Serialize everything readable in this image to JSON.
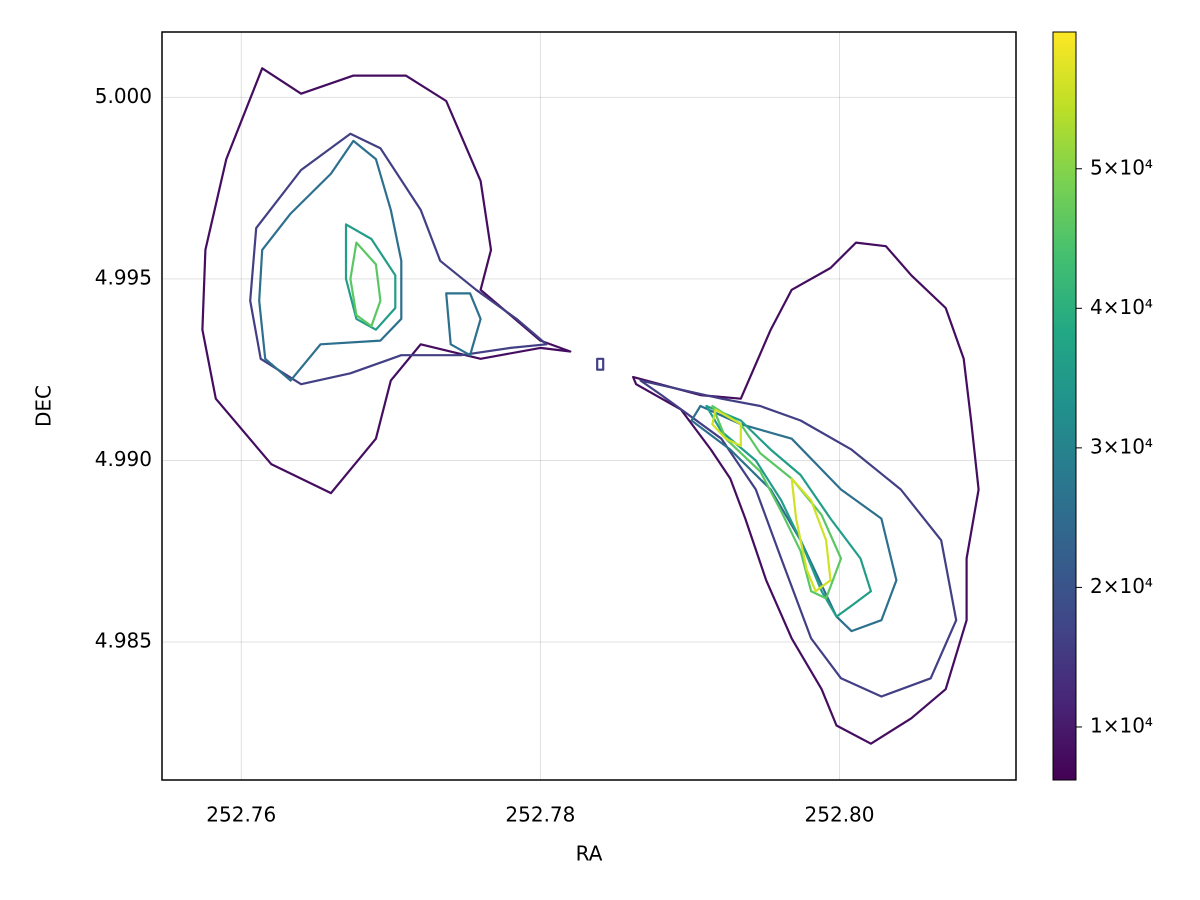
{
  "chart_data": {
    "type": "contour",
    "x_label": "RA",
    "y_label": "DEC",
    "xlim": [
      252.7547,
      252.8118
    ],
    "ylim": [
      4.9812,
      5.0018
    ],
    "xticks": [
      252.76,
      252.78,
      {
        "value": 252.8,
        "label": "252.80"
      }
    ],
    "yticks": [
      {
        "value": 4.985,
        "label": "4.985"
      },
      {
        "value": 4.99,
        "label": "4.990"
      },
      4.995,
      {
        "value": 5.0,
        "label": "5.000"
      }
    ],
    "grid": true,
    "colormap": "viridis",
    "clim": [
      6200,
      59800
    ],
    "colorbar_ticks": [
      {
        "value": 10000,
        "label": "1×10⁴"
      },
      {
        "value": 20000,
        "label": "2×10⁴"
      },
      {
        "value": 30000,
        "label": "3×10⁴"
      },
      {
        "value": 40000,
        "label": "4×10⁴"
      },
      {
        "value": 50000,
        "label": "5×10⁴"
      }
    ],
    "levels": [
      {
        "level": 8000,
        "paths": [
          {
            "x": [
              252.7614,
              252.764,
              252.7675,
              252.771,
              252.7737,
              252.776,
              252.7767,
              252.776,
              252.78,
              252.782,
              252.78,
              252.776,
              252.772,
              252.77,
              252.769,
              252.766,
              252.762,
              252.7583,
              252.7574,
              252.7576,
              252.759
            ],
            "y": [
              5.0008,
              5.0001,
              5.0006,
              5.0006,
              4.9999,
              4.9977,
              4.9958,
              4.9947,
              4.9933,
              4.993,
              4.9931,
              4.9928,
              4.9932,
              4.9922,
              4.9906,
              4.9891,
              4.9899,
              4.9917,
              4.9936,
              4.9958,
              4.9983
            ]
          },
          {
            "x": [
              252.7862,
              252.7907,
              252.7934,
              252.7954,
              252.7968,
              252.7994,
              252.8011,
              252.8031,
              252.8048,
              252.8071,
              252.8083,
              252.8088,
              252.8093,
              252.8085,
              252.8085,
              252.8071,
              252.8048,
              252.8021,
              252.7998,
              252.7988,
              252.7968,
              252.7951,
              252.7937,
              252.7927,
              252.7914,
              252.7894,
              252.7864
            ],
            "y": [
              4.9923,
              4.9918,
              4.9917,
              4.9936,
              4.9947,
              4.9953,
              4.996,
              4.9959,
              4.9951,
              4.9942,
              4.9928,
              4.9911,
              4.9892,
              4.9873,
              4.9856,
              4.9837,
              4.9829,
              4.9822,
              4.9827,
              4.9837,
              4.9851,
              4.9867,
              4.9884,
              4.9895,
              4.9903,
              4.9914,
              4.9921
            ]
          }
        ]
      },
      {
        "level": 16000,
        "paths": [
          {
            "x": [
              252.7673,
              252.7693,
              252.772,
              252.7733,
              252.7757,
              252.7784,
              252.7804,
              252.778,
              252.7747,
              252.7707,
              252.7673,
              252.764,
              252.7613,
              252.7606,
              252.761,
              252.764
            ],
            "y": [
              4.999,
              4.9986,
              4.9969,
              4.9955,
              4.9947,
              4.9939,
              4.9932,
              4.9931,
              4.9929,
              4.9929,
              4.9924,
              4.9921,
              4.9928,
              4.9944,
              4.9964,
              4.998
            ]
          },
          {
            "x": [
              252.7867,
              252.7921,
              252.7947,
              252.7974,
              252.8008,
              252.8041,
              252.8068,
              252.8078,
              252.8061,
              252.8028,
              252.8001,
              252.7981,
              252.7961,
              252.7944,
              252.7921,
              252.7881
            ],
            "y": [
              4.9922,
              4.9917,
              4.9915,
              4.9911,
              4.9903,
              4.9892,
              4.9878,
              4.9856,
              4.984,
              4.9835,
              4.984,
              4.9851,
              4.9873,
              4.9892,
              4.9906,
              4.9918
            ]
          },
          {
            "x": [
              252.7838,
              252.7842,
              252.7842,
              252.7838
            ],
            "y": [
              4.9928,
              4.9928,
              4.9925,
              4.9925
            ]
          }
        ]
      },
      {
        "level": 26000,
        "paths": [
          {
            "x": [
              252.7675,
              252.769,
              252.77,
              252.7707,
              252.7707,
              252.7693,
              252.7653,
              252.7633,
              252.7616,
              252.7612,
              252.7614,
              252.7633,
              252.766
            ],
            "y": [
              4.9988,
              4.9983,
              4.9969,
              4.9955,
              4.9939,
              4.9933,
              4.9932,
              4.9922,
              4.9928,
              4.9944,
              4.9958,
              4.9968,
              4.9979
            ]
          },
          {
            "x": [
              252.7737,
              252.7753,
              252.776,
              252.7753,
              252.774
            ],
            "y": [
              4.9946,
              4.9946,
              4.9939,
              4.9929,
              4.9932
            ]
          },
          {
            "x": [
              252.7907,
              252.7934,
              252.7968,
              252.8001,
              252.8028,
              252.8038,
              252.8028,
              252.8008,
              252.7998,
              252.7974,
              252.7954,
              252.7927,
              252.7901
            ],
            "y": [
              4.9915,
              4.991,
              4.9906,
              4.9892,
              4.9884,
              4.9867,
              4.9856,
              4.9853,
              4.9857,
              4.9878,
              4.9892,
              4.9903,
              4.9911
            ]
          }
        ]
      },
      {
        "level": 36000,
        "paths": [
          {
            "x": [
              252.767,
              252.7687,
              252.7703,
              252.7703,
              252.769,
              252.7677,
              252.767
            ],
            "y": [
              4.9965,
              4.9961,
              4.9951,
              4.9942,
              4.9936,
              4.9939,
              4.995
            ]
          },
          {
            "x": [
              252.7911,
              252.7934,
              252.7954,
              252.7974,
              252.7994,
              252.8014,
              252.8021,
              252.8008,
              252.7998,
              252.7988,
              252.7974,
              252.7961,
              252.7944,
              252.7921
            ],
            "y": [
              4.9915,
              4.9911,
              4.9903,
              4.9896,
              4.9884,
              4.9873,
              4.9864,
              4.986,
              4.9857,
              4.9864,
              4.9878,
              4.9889,
              4.99,
              4.9908
            ]
          }
        ]
      },
      {
        "level": 46000,
        "paths": [
          {
            "x": [
              252.7677,
              252.769,
              252.7693,
              252.7687,
              252.7677,
              252.7673
            ],
            "y": [
              4.996,
              4.9954,
              4.9944,
              4.9937,
              4.994,
              4.995
            ]
          },
          {
            "x": [
              252.7915,
              252.7934,
              252.7947,
              252.7968,
              252.7988,
              252.8001,
              252.7991,
              252.7981,
              252.7974,
              252.7961,
              252.7947,
              252.7924
            ],
            "y": [
              4.9915,
              4.991,
              4.9902,
              4.9895,
              4.9885,
              4.9873,
              4.9862,
              4.9864,
              4.9875,
              4.9886,
              4.9897,
              4.9906
            ]
          }
        ]
      },
      {
        "level": 56000,
        "paths": [
          {
            "x": [
              252.7917,
              252.7934,
              252.7934,
              252.7924,
              252.7915
            ],
            "y": [
              4.9914,
              4.991,
              4.9904,
              4.9906,
              4.991
            ]
          },
          {
            "x": [
              252.7968,
              252.7981,
              252.7991,
              252.7994,
              252.7984,
              252.7978,
              252.7971
            ],
            "y": [
              4.9895,
              4.9889,
              4.9878,
              4.9867,
              4.9864,
              4.987,
              4.9884
            ]
          }
        ]
      }
    ]
  }
}
